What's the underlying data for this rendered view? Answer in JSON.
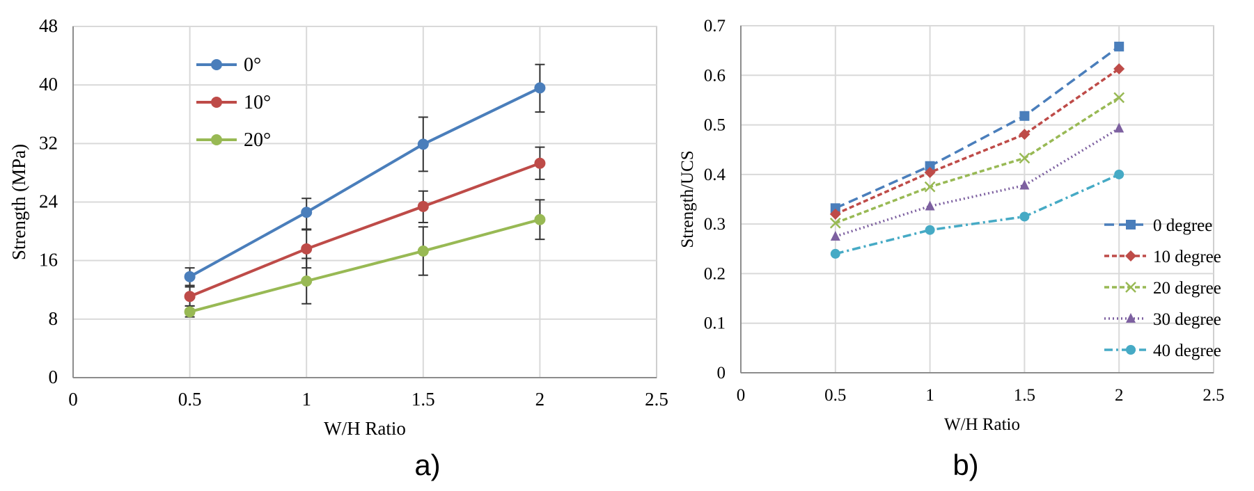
{
  "chart_data": [
    {
      "type": "line",
      "panel_label": "a)",
      "xlabel": "W/H Ratio",
      "ylabel": "Strength (MPa)",
      "xlim": [
        0,
        2.5
      ],
      "ylim": [
        0,
        48
      ],
      "xticks": [
        "0",
        "0.5",
        "1",
        "1.5",
        "2",
        "2.5"
      ],
      "xtick_values": [
        0,
        0.5,
        1,
        1.5,
        2,
        2.5
      ],
      "yticks": [
        "0",
        "8",
        "16",
        "24",
        "32",
        "40",
        "48"
      ],
      "ytick_values": [
        0,
        8,
        16,
        24,
        32,
        40,
        48
      ],
      "grid": true,
      "legend_position": "top-left",
      "series": [
        {
          "name": "0°",
          "color": "#4a7ebb",
          "marker": "circle",
          "x": [
            0.5,
            1,
            1.5,
            2
          ],
          "y": [
            13.8,
            22.6,
            31.9,
            39.6
          ],
          "err_low": [
            12.6,
            20.2,
            28.2,
            36.3
          ],
          "err_high": [
            15.0,
            24.5,
            35.6,
            42.8
          ]
        },
        {
          "name": "10°",
          "color": "#be4b48",
          "marker": "circle",
          "x": [
            0.5,
            1,
            1.5,
            2
          ],
          "y": [
            11.1,
            17.6,
            23.4,
            29.3
          ],
          "err_low": [
            9.8,
            15.0,
            21.2,
            27.1
          ],
          "err_high": [
            12.4,
            20.3,
            25.5,
            31.5
          ]
        },
        {
          "name": "20°",
          "color": "#98b954",
          "marker": "circle",
          "x": [
            0.5,
            1,
            1.5,
            2
          ],
          "y": [
            9.0,
            13.2,
            17.3,
            21.6
          ],
          "err_low": [
            8.3,
            10.1,
            14.0,
            18.9
          ],
          "err_high": [
            9.8,
            16.3,
            20.6,
            24.3
          ]
        }
      ]
    },
    {
      "type": "line",
      "panel_label": "b)",
      "xlabel": "W/H Ratio",
      "ylabel": "Strength/UCS",
      "xlim": [
        0,
        2.5
      ],
      "ylim": [
        0,
        0.7
      ],
      "xticks": [
        "0",
        "0.5",
        "1",
        "1.5",
        "2",
        "2.5"
      ],
      "xtick_values": [
        0,
        0.5,
        1,
        1.5,
        2,
        2.5
      ],
      "yticks": [
        "0",
        "0.1",
        "0.2",
        "0.3",
        "0.4",
        "0.5",
        "0.6",
        "0.7"
      ],
      "ytick_values": [
        0,
        0.1,
        0.2,
        0.3,
        0.4,
        0.5,
        0.6,
        0.7
      ],
      "grid": true,
      "legend_position": "bottom-right",
      "series": [
        {
          "name": "0 degree",
          "color": "#4a7ebb",
          "marker": "square",
          "dash": "dashed",
          "x": [
            0.5,
            1,
            1.5,
            2
          ],
          "y": [
            0.332,
            0.417,
            0.518,
            0.658
          ]
        },
        {
          "name": "10 degree",
          "color": "#be4b48",
          "marker": "diamond",
          "dash": "short-dash",
          "x": [
            0.5,
            1,
            1.5,
            2
          ],
          "y": [
            0.32,
            0.404,
            0.481,
            0.613
          ]
        },
        {
          "name": "20 degree",
          "color": "#98b954",
          "marker": "x",
          "dash": "short-dash",
          "x": [
            0.5,
            1,
            1.5,
            2
          ],
          "y": [
            0.302,
            0.375,
            0.433,
            0.555
          ]
        },
        {
          "name": "30 degree",
          "color": "#7d60a0",
          "marker": "triangle",
          "dash": "dotted",
          "x": [
            0.5,
            1,
            1.5,
            2
          ],
          "y": [
            0.275,
            0.336,
            0.378,
            0.493
          ]
        },
        {
          "name": "40 degree",
          "color": "#46aac5",
          "marker": "circle",
          "dash": "dash-dot",
          "x": [
            0.5,
            1,
            1.5,
            2
          ],
          "y": [
            0.24,
            0.288,
            0.315,
            0.4
          ]
        }
      ]
    }
  ]
}
